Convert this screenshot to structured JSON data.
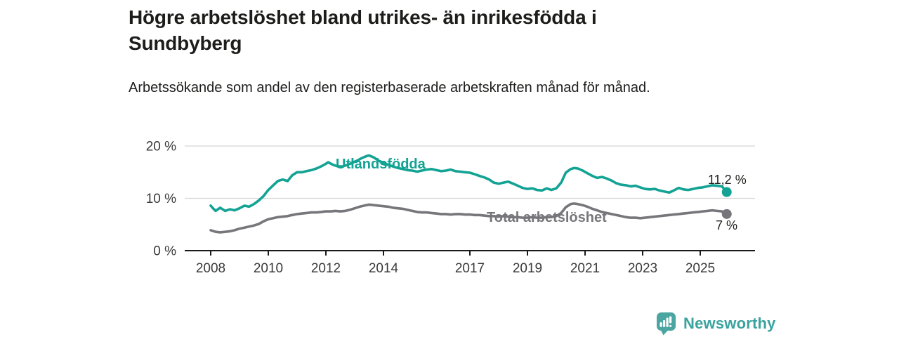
{
  "chart_data": {
    "type": "line",
    "title": "Högre arbetslöshet bland utrikes- än inrikesfödda i Sundbyberg",
    "subtitle": "Arbetssökande som andel av den registerbaserade arbetskraften månad för månad.",
    "x_unit": "year (monthly data)",
    "xlim": [
      2007.1,
      2026.9
    ],
    "ylim": [
      0,
      20
    ],
    "grid": "horizontal",
    "legend_position": "inline-labels",
    "y_ticks": [
      {
        "value": 0,
        "label": "0 %"
      },
      {
        "value": 10,
        "label": "10 %"
      },
      {
        "value": 20,
        "label": "20 %"
      }
    ],
    "x_ticks": [
      {
        "value": 2008,
        "label": "2008"
      },
      {
        "value": 2010,
        "label": "2010"
      },
      {
        "value": 2012,
        "label": "2012"
      },
      {
        "value": 2014,
        "label": "2014"
      },
      {
        "value": 2017,
        "label": "2017"
      },
      {
        "value": 2019,
        "label": "2019"
      },
      {
        "value": 2021,
        "label": "2021"
      },
      {
        "value": 2023,
        "label": "2023"
      },
      {
        "value": 2025,
        "label": "2025"
      }
    ],
    "series": [
      {
        "id": "utlandsfodda",
        "name": "Utlandsfödda",
        "color": "#13a394",
        "end_value": 11.2,
        "end_label": "11,2 %",
        "points": [
          [
            2008.0,
            8.6
          ],
          [
            2008.08,
            8.1
          ],
          [
            2008.17,
            7.6
          ],
          [
            2008.33,
            8.2
          ],
          [
            2008.5,
            7.6
          ],
          [
            2008.67,
            7.9
          ],
          [
            2008.83,
            7.7
          ],
          [
            2009.0,
            8.1
          ],
          [
            2009.17,
            8.6
          ],
          [
            2009.33,
            8.4
          ],
          [
            2009.5,
            8.9
          ],
          [
            2009.67,
            9.6
          ],
          [
            2009.83,
            10.4
          ],
          [
            2010.0,
            11.6
          ],
          [
            2010.17,
            12.5
          ],
          [
            2010.33,
            13.3
          ],
          [
            2010.5,
            13.6
          ],
          [
            2010.67,
            13.3
          ],
          [
            2010.83,
            14.4
          ],
          [
            2011.0,
            15.0
          ],
          [
            2011.17,
            15.0
          ],
          [
            2011.33,
            15.2
          ],
          [
            2011.5,
            15.4
          ],
          [
            2011.67,
            15.7
          ],
          [
            2011.83,
            16.1
          ],
          [
            2012.0,
            16.6
          ],
          [
            2012.08,
            16.9
          ],
          [
            2012.25,
            16.4
          ],
          [
            2012.42,
            16.1
          ],
          [
            2012.58,
            16.1
          ],
          [
            2012.75,
            16.4
          ],
          [
            2012.92,
            16.8
          ],
          [
            2013.08,
            17.2
          ],
          [
            2013.25,
            17.7
          ],
          [
            2013.42,
            18.1
          ],
          [
            2013.5,
            18.2
          ],
          [
            2013.67,
            17.8
          ],
          [
            2013.83,
            17.2
          ],
          [
            2014.0,
            16.8
          ],
          [
            2014.17,
            16.4
          ],
          [
            2014.33,
            16.1
          ],
          [
            2014.5,
            15.8
          ],
          [
            2014.67,
            15.6
          ],
          [
            2014.83,
            15.4
          ],
          [
            2015.0,
            15.3
          ],
          [
            2015.17,
            15.1
          ],
          [
            2015.33,
            15.3
          ],
          [
            2015.5,
            15.5
          ],
          [
            2015.67,
            15.6
          ],
          [
            2015.83,
            15.4
          ],
          [
            2016.0,
            15.2
          ],
          [
            2016.17,
            15.3
          ],
          [
            2016.33,
            15.5
          ],
          [
            2016.5,
            15.2
          ],
          [
            2016.67,
            15.1
          ],
          [
            2016.83,
            15.0
          ],
          [
            2017.0,
            14.9
          ],
          [
            2017.17,
            14.6
          ],
          [
            2017.33,
            14.3
          ],
          [
            2017.5,
            14.0
          ],
          [
            2017.67,
            13.6
          ],
          [
            2017.83,
            13.0
          ],
          [
            2018.0,
            12.8
          ],
          [
            2018.17,
            13.0
          ],
          [
            2018.33,
            13.2
          ],
          [
            2018.5,
            12.8
          ],
          [
            2018.67,
            12.4
          ],
          [
            2018.83,
            12.0
          ],
          [
            2019.0,
            11.8
          ],
          [
            2019.17,
            11.9
          ],
          [
            2019.33,
            11.6
          ],
          [
            2019.5,
            11.5
          ],
          [
            2019.67,
            11.9
          ],
          [
            2019.83,
            11.6
          ],
          [
            2020.0,
            11.9
          ],
          [
            2020.17,
            13.0
          ],
          [
            2020.33,
            14.9
          ],
          [
            2020.5,
            15.6
          ],
          [
            2020.62,
            15.8
          ],
          [
            2020.75,
            15.7
          ],
          [
            2020.92,
            15.3
          ],
          [
            2021.08,
            14.8
          ],
          [
            2021.25,
            14.3
          ],
          [
            2021.42,
            13.9
          ],
          [
            2021.58,
            14.1
          ],
          [
            2021.75,
            13.8
          ],
          [
            2021.92,
            13.4
          ],
          [
            2022.08,
            12.9
          ],
          [
            2022.25,
            12.6
          ],
          [
            2022.42,
            12.5
          ],
          [
            2022.58,
            12.3
          ],
          [
            2022.75,
            12.4
          ],
          [
            2022.92,
            12.1
          ],
          [
            2023.08,
            11.8
          ],
          [
            2023.25,
            11.7
          ],
          [
            2023.42,
            11.8
          ],
          [
            2023.58,
            11.5
          ],
          [
            2023.75,
            11.3
          ],
          [
            2023.92,
            11.1
          ],
          [
            2024.08,
            11.5
          ],
          [
            2024.25,
            12.0
          ],
          [
            2024.42,
            11.7
          ],
          [
            2024.58,
            11.6
          ],
          [
            2024.75,
            11.8
          ],
          [
            2024.92,
            12.0
          ],
          [
            2025.08,
            12.1
          ],
          [
            2025.25,
            12.3
          ],
          [
            2025.42,
            12.5
          ],
          [
            2025.58,
            12.4
          ],
          [
            2025.75,
            12.3
          ],
          [
            2025.92,
            11.2
          ]
        ]
      },
      {
        "id": "total-arbetsloshet",
        "name": "Total arbetslöshet",
        "color": "#76767b",
        "end_value": 7.0,
        "end_label": "7 %",
        "points": [
          [
            2008.0,
            3.9
          ],
          [
            2008.17,
            3.6
          ],
          [
            2008.33,
            3.5
          ],
          [
            2008.5,
            3.6
          ],
          [
            2008.67,
            3.7
          ],
          [
            2008.83,
            3.9
          ],
          [
            2009.0,
            4.2
          ],
          [
            2009.17,
            4.4
          ],
          [
            2009.33,
            4.6
          ],
          [
            2009.5,
            4.8
          ],
          [
            2009.67,
            5.1
          ],
          [
            2009.83,
            5.6
          ],
          [
            2010.0,
            6.0
          ],
          [
            2010.17,
            6.2
          ],
          [
            2010.33,
            6.4
          ],
          [
            2010.5,
            6.5
          ],
          [
            2010.67,
            6.6
          ],
          [
            2010.83,
            6.8
          ],
          [
            2011.0,
            7.0
          ],
          [
            2011.17,
            7.1
          ],
          [
            2011.33,
            7.2
          ],
          [
            2011.5,
            7.3
          ],
          [
            2011.67,
            7.3
          ],
          [
            2011.83,
            7.4
          ],
          [
            2012.0,
            7.5
          ],
          [
            2012.17,
            7.5
          ],
          [
            2012.33,
            7.6
          ],
          [
            2012.5,
            7.5
          ],
          [
            2012.67,
            7.6
          ],
          [
            2012.83,
            7.8
          ],
          [
            2013.0,
            8.1
          ],
          [
            2013.17,
            8.4
          ],
          [
            2013.33,
            8.6
          ],
          [
            2013.5,
            8.8
          ],
          [
            2013.67,
            8.7
          ],
          [
            2013.83,
            8.6
          ],
          [
            2014.0,
            8.5
          ],
          [
            2014.17,
            8.4
          ],
          [
            2014.33,
            8.2
          ],
          [
            2014.5,
            8.1
          ],
          [
            2014.67,
            8.0
          ],
          [
            2014.83,
            7.8
          ],
          [
            2015.0,
            7.6
          ],
          [
            2015.17,
            7.4
          ],
          [
            2015.33,
            7.3
          ],
          [
            2015.5,
            7.3
          ],
          [
            2015.67,
            7.2
          ],
          [
            2015.83,
            7.1
          ],
          [
            2016.0,
            7.0
          ],
          [
            2016.17,
            7.0
          ],
          [
            2016.33,
            6.9
          ],
          [
            2016.5,
            7.0
          ],
          [
            2016.67,
            7.0
          ],
          [
            2016.83,
            6.9
          ],
          [
            2017.0,
            6.9
          ],
          [
            2017.17,
            6.8
          ],
          [
            2017.33,
            6.8
          ],
          [
            2017.5,
            6.7
          ],
          [
            2017.67,
            6.6
          ],
          [
            2017.83,
            6.6
          ],
          [
            2018.0,
            6.5
          ],
          [
            2018.17,
            6.6
          ],
          [
            2018.33,
            6.5
          ],
          [
            2018.5,
            6.4
          ],
          [
            2018.67,
            6.4
          ],
          [
            2018.83,
            6.3
          ],
          [
            2019.0,
            6.3
          ],
          [
            2019.17,
            6.4
          ],
          [
            2019.33,
            6.3
          ],
          [
            2019.5,
            6.3
          ],
          [
            2019.67,
            6.4
          ],
          [
            2019.83,
            6.4
          ],
          [
            2020.0,
            6.6
          ],
          [
            2020.17,
            7.2
          ],
          [
            2020.33,
            8.3
          ],
          [
            2020.5,
            8.9
          ],
          [
            2020.62,
            9.0
          ],
          [
            2020.75,
            8.9
          ],
          [
            2020.92,
            8.7
          ],
          [
            2021.08,
            8.4
          ],
          [
            2021.25,
            8.0
          ],
          [
            2021.42,
            7.7
          ],
          [
            2021.58,
            7.4
          ],
          [
            2021.75,
            7.2
          ],
          [
            2021.92,
            7.0
          ],
          [
            2022.08,
            6.8
          ],
          [
            2022.25,
            6.6
          ],
          [
            2022.42,
            6.4
          ],
          [
            2022.58,
            6.3
          ],
          [
            2022.75,
            6.3
          ],
          [
            2022.92,
            6.2
          ],
          [
            2023.08,
            6.3
          ],
          [
            2023.25,
            6.4
          ],
          [
            2023.42,
            6.5
          ],
          [
            2023.58,
            6.6
          ],
          [
            2023.75,
            6.7
          ],
          [
            2023.92,
            6.8
          ],
          [
            2024.08,
            6.9
          ],
          [
            2024.25,
            7.0
          ],
          [
            2024.42,
            7.1
          ],
          [
            2024.58,
            7.2
          ],
          [
            2024.75,
            7.3
          ],
          [
            2024.92,
            7.4
          ],
          [
            2025.08,
            7.5
          ],
          [
            2025.25,
            7.6
          ],
          [
            2025.42,
            7.7
          ],
          [
            2025.58,
            7.6
          ],
          [
            2025.75,
            7.5
          ],
          [
            2025.92,
            7.0
          ]
        ]
      }
    ]
  },
  "footer": {
    "brand": "Newsworthy",
    "logo_icon": "newsworthy-speech-bubble-bar-chart-icon"
  },
  "colors": {
    "accent_teal": "#13a394",
    "series_gray": "#76767b",
    "text": "#1d1d1b",
    "axis": "#1a1a1a",
    "tick_text": "#3a3a3a",
    "grid": "#d8d8d8",
    "logo_teal": "#4ba5a0",
    "logo_text_teal": "#3aa39e"
  }
}
